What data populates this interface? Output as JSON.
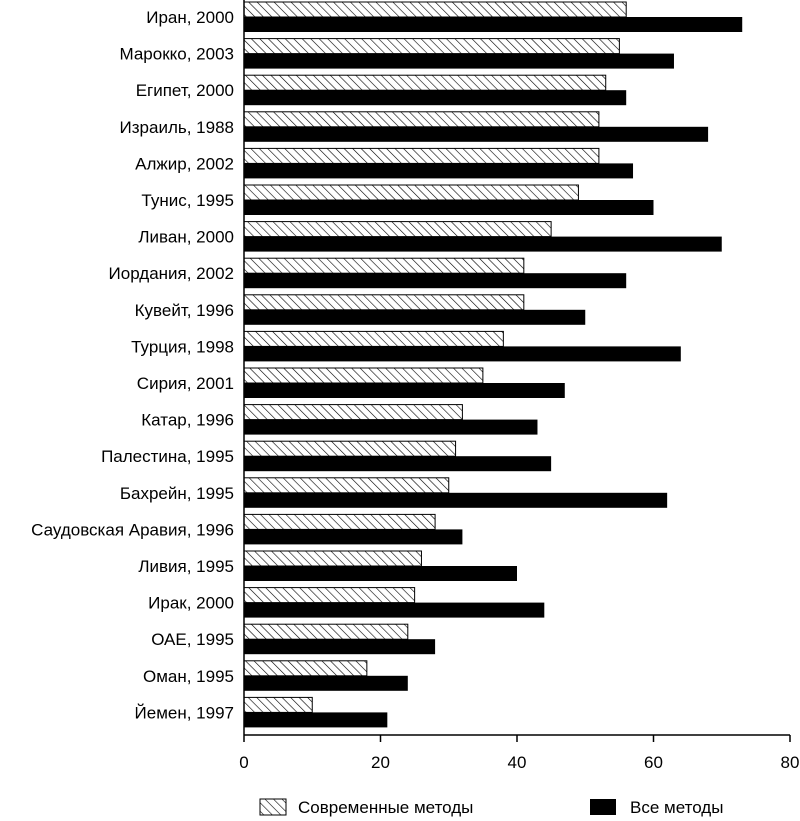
{
  "chart_data": {
    "type": "bar",
    "orientation": "horizontal",
    "categories": [
      "Иран, 2000",
      "Марокко, 2003",
      "Египет, 2000",
      "Израиль, 1988",
      "Алжир, 2002",
      "Тунис, 1995",
      "Ливан, 2000",
      "Иордания, 2002",
      "Кувейт, 1996",
      "Турция, 1998",
      "Сирия, 2001",
      "Катар, 1996",
      "Палестина, 1995",
      "Бахрейн, 1995",
      "Саудовская Аравия, 1996",
      "Ливия, 1995",
      "Ирак, 2000",
      "ОАЕ, 1995",
      "Оман, 1995",
      "Йемен, 1997"
    ],
    "series": [
      {
        "name": "Современные методы",
        "pattern": "hatched",
        "values": [
          56,
          55,
          53,
          52,
          52,
          49,
          45,
          41,
          41,
          38,
          35,
          32,
          31,
          30,
          28,
          26,
          25,
          24,
          18,
          10
        ]
      },
      {
        "name": "Все методы",
        "color": "#000000",
        "values": [
          73,
          63,
          56,
          68,
          57,
          60,
          70,
          56,
          50,
          64,
          47,
          43,
          45,
          62,
          32,
          40,
          44,
          28,
          24,
          21
        ]
      }
    ],
    "xlim": [
      0,
      80
    ],
    "xticks": [
      "0",
      "20",
      "40",
      "60",
      "80"
    ],
    "grid": false,
    "legend_position": "bottom"
  }
}
